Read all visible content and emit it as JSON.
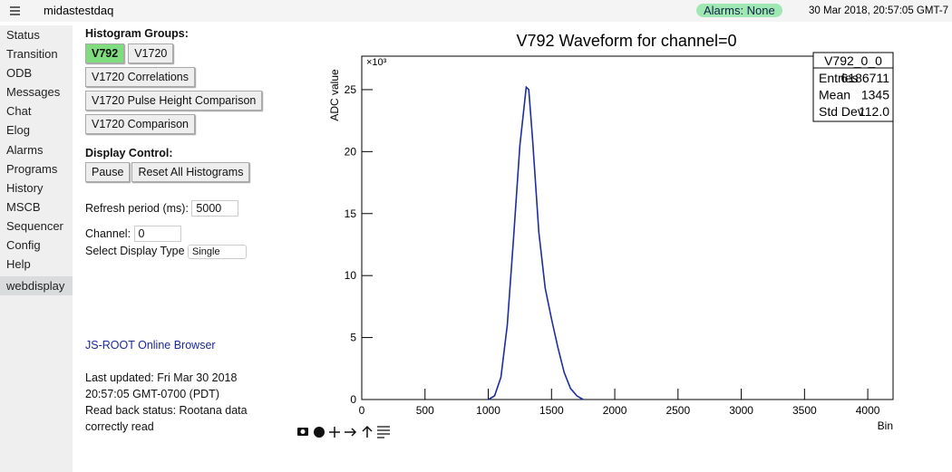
{
  "header": {
    "title": "midastestdaq",
    "alarms": "Alarms: None",
    "datetime": "30 Mar 2018, 20:57:05 GMT-7"
  },
  "sidebar": {
    "items": [
      "Status",
      "Transition",
      "ODB",
      "Messages",
      "Chat",
      "Elog",
      "Alarms",
      "Programs",
      "History",
      "MSCB",
      "Sequencer",
      "Config",
      "Help",
      "webdisplay"
    ]
  },
  "panel": {
    "groups_label": "Histogram Groups:",
    "groups": [
      "V792",
      "V1720",
      "V1720 Correlations",
      "V1720 Pulse Height Comparison",
      "V1720 Comparison"
    ],
    "display_label": "Display Control:",
    "display_buttons": [
      "Pause",
      "Reset All Histograms"
    ],
    "refresh_label": "Refresh period (ms):",
    "refresh_value": "5000",
    "channel_label": "Channel:",
    "channel_value": "0",
    "type_label": "Select Display Type",
    "type_value": "Single",
    "link": "JS-ROOT Online Browser",
    "updated": "Last updated: Fri Mar 30 2018 20:57:05 GMT-0700 (PDT)",
    "status_label": "Read back status:",
    "status_value": "Rootana data correctly read"
  },
  "chart_data": {
    "type": "line",
    "title": "V792 Waveform for channel=0",
    "ylabel": "ADC value",
    "xlabel": "Bin",
    "y_multiplier": "×10³",
    "x": [
      1000,
      1050,
      1100,
      1150,
      1200,
      1250,
      1300,
      1320,
      1350,
      1400,
      1450,
      1500,
      1550,
      1600,
      1650,
      1700,
      1750
    ],
    "series": [
      {
        "name": "V792_0_0",
        "color": "#1c2ea0",
        "values": [
          0,
          0.3,
          1.8,
          6,
          13,
          20.5,
          25.2,
          25,
          21,
          13.5,
          9,
          6.5,
          4.2,
          2.2,
          0.9,
          0.3,
          0
        ]
      }
    ],
    "xlim": [
      0,
      4200
    ],
    "xticks": [
      0,
      500,
      1000,
      1500,
      2000,
      2500,
      3000,
      3500,
      4000
    ],
    "ylim": [
      0,
      27.7
    ],
    "yticks": [
      0,
      5,
      10,
      15,
      20,
      25
    ],
    "stats": {
      "name": "V792_0_0",
      "rows": [
        [
          "Entries",
          "6186711"
        ],
        [
          "Mean",
          "1345"
        ],
        [
          "Std Dev",
          "112.0"
        ]
      ]
    }
  }
}
